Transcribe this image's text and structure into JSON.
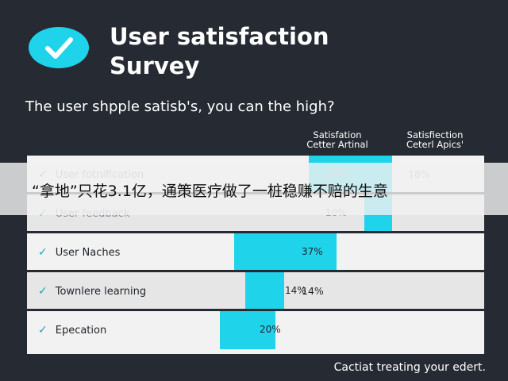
{
  "header": {
    "title": "User satisfaction Survey",
    "subtitle": "The user shpple satisb's, you can the high?",
    "icon": "check-circle-icon"
  },
  "columns": [
    {
      "line1": "Satisfation",
      "line2": "Cetter Artinal"
    },
    {
      "line1": "Satisfiection",
      "line2": "Ceterl Apics'"
    }
  ],
  "chart_data": {
    "type": "bar",
    "title": "User satisfaction Survey",
    "categories": [
      "User fotnification",
      "User feedback",
      "User Naches",
      "Townlere learning",
      "Epecation"
    ],
    "series": [
      {
        "name": "Satisfation Cetter Artinal",
        "values": [
          30,
          10,
          37,
          14,
          20
        ],
        "labels": [
          "30%",
          "10%",
          "37%",
          "14%",
          "20%"
        ]
      },
      {
        "name": "Satisfiection Ceterl Apics'",
        "values": [
          18,
          null,
          null,
          14,
          null
        ],
        "labels": [
          "18%",
          "",
          "",
          "14%",
          ""
        ]
      }
    ],
    "unit": "%",
    "legend": "none",
    "grid": false
  },
  "overlay": {
    "text": "“拿地”只花3.1亿，通策医疗做了一桩稳赚不赔的生意"
  },
  "footer": {
    "text": "Cactiat treating your edert."
  },
  "colors": {
    "background": "#262b33",
    "accent": "#1fd3ea",
    "panel": "#f2f2f2",
    "text_dark": "#1f2329"
  }
}
